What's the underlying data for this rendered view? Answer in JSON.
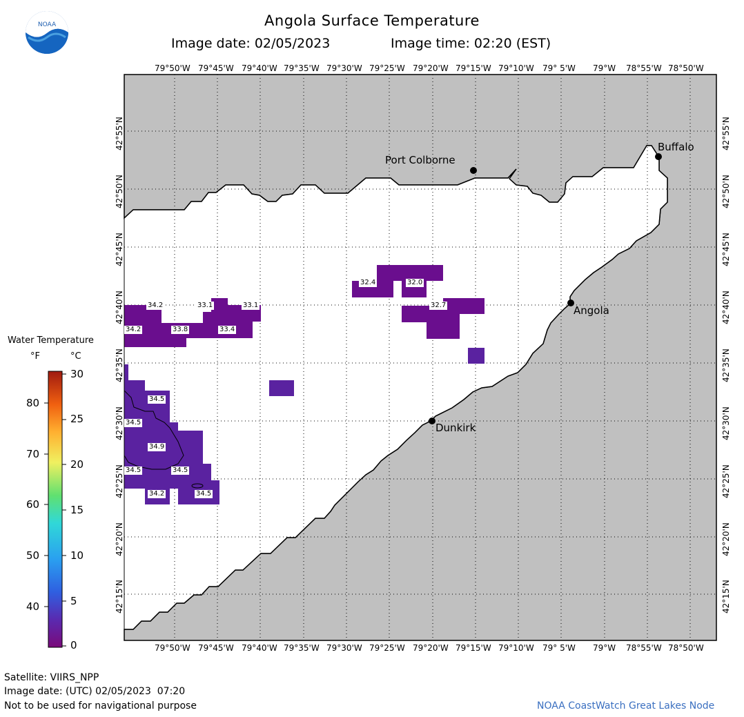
{
  "header": {
    "title": "Angola Surface Temperature",
    "date_text": "Image date: 02/05/2023",
    "time_text": "Image time: 02:20 (EST)"
  },
  "logo": {
    "name": "noaa-logo",
    "text": "NOAA"
  },
  "map": {
    "lon_labels": [
      "79°50'W",
      "79°45'W",
      "79°40'W",
      "79°35'W",
      "79°30'W",
      "79°25'W",
      "79°20'W",
      "79°15'W",
      "79°10'W",
      "79° 5'W",
      "79°W",
      "78°55'W",
      "78°50'W"
    ],
    "lat_labels": [
      "42°55'N",
      "42°50'N",
      "42°45'N",
      "42°40'N",
      "42°35'N",
      "42°30'N",
      "42°25'N",
      "42°20'N",
      "42°15'N"
    ],
    "cities": [
      {
        "name": "Port Colborne"
      },
      {
        "name": "Buffalo"
      },
      {
        "name": "Angola"
      },
      {
        "name": "Dunkirk"
      }
    ],
    "temp_labels": [
      "34.2",
      "33.1",
      "33.1",
      "34.2",
      "33.8",
      "33.4",
      "32.4",
      "32.0",
      "32.7",
      "34.5",
      "34.5",
      "34.9",
      "34.5",
      "34.5",
      "34.2",
      "34.5"
    ],
    "colors": {
      "land": "#c0c0c0",
      "water": "#ffffff",
      "pixel_purple": "#6a0e8e",
      "pixel_indigo": "#5a22a0"
    }
  },
  "legend": {
    "title": "Water Temperature",
    "unit_f": "°F",
    "unit_c": "°C",
    "f_ticks": [
      "80",
      "70",
      "60",
      "50",
      "40"
    ],
    "c_ticks": [
      "30",
      "25",
      "20",
      "15",
      "10",
      "5",
      "0"
    ]
  },
  "footer": {
    "satellite": "Satellite: VIIRS_NPP",
    "utc_date": "Image date: (UTC) 02/05/2023  07:20",
    "disclaimer": "Not to be used for navigational purpose",
    "credit": "NOAA CoastWatch Great Lakes Node"
  }
}
